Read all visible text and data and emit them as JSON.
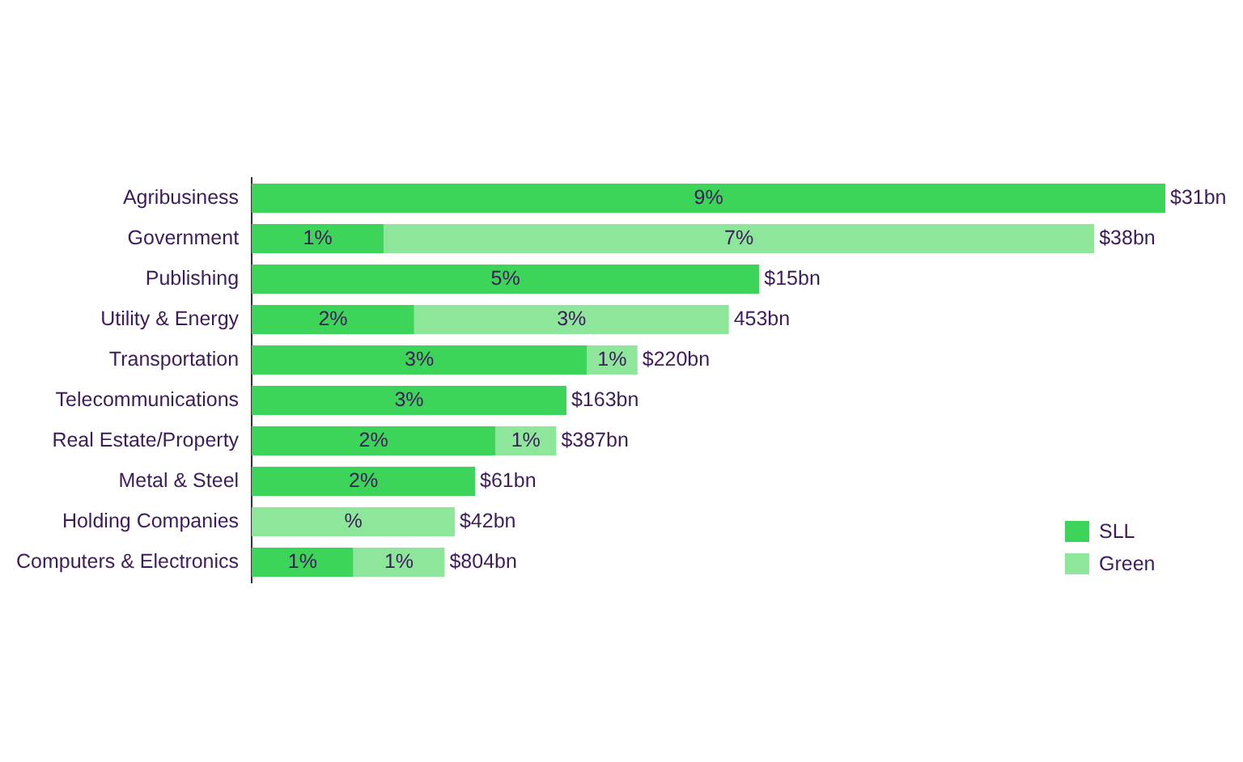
{
  "chart_data": {
    "type": "bar",
    "orientation": "horizontal",
    "stacked": true,
    "legend": "bottom right",
    "tick_labels": "y",
    "xlim": [
      0,
      9
    ],
    "categories": [
      "Agribusiness",
      "Government",
      "Publishing",
      "Utility & Energy",
      "Transportation",
      "Telecommunications",
      "Real Estate/Property",
      "Metal & Steel",
      "Holding Companies",
      "Computers & Electronics"
    ],
    "series": [
      {
        "name": "SLL",
        "color": "#3dd45a",
        "values": [
          9,
          1.3,
          5,
          1.6,
          3.3,
          3.1,
          2.4,
          2.2,
          null,
          1
        ],
        "value_labels": [
          "9%",
          "1%",
          "5%",
          "2%",
          "3%",
          "3%",
          "2%",
          "2%",
          null,
          "1%"
        ]
      },
      {
        "name": "Green",
        "color": "#8ee69a",
        "values": [
          null,
          7,
          null,
          3.1,
          0.5,
          null,
          0.6,
          null,
          2,
          0.9
        ],
        "value_labels": [
          null,
          "7%",
          null,
          "3%",
          "1%",
          null,
          "1%",
          null,
          "%",
          "1%"
        ]
      }
    ],
    "annotations": [
      {
        "text": "$31bn",
        "x": 9,
        "y": "Agribusiness"
      },
      {
        "text": "$38bn",
        "x": 8.3,
        "y": "Government"
      },
      {
        "text": "$15bn",
        "x": 5,
        "y": "Publishing"
      },
      {
        "text": "453bn",
        "x": 4.7,
        "y": "Utility & Energy"
      },
      {
        "text": "$220bn",
        "x": 3.8,
        "y": "Transportation"
      },
      {
        "text": "$163bn",
        "x": 3.1,
        "y": "Telecommunications"
      },
      {
        "text": "$387bn",
        "x": 3,
        "y": "Real Estate/Property"
      },
      {
        "text": "$61bn",
        "x": 2.2,
        "y": "Metal & Steel"
      },
      {
        "text": "$42bn",
        "x": 2,
        "y": "Holding Companies"
      },
      {
        "text": "$804bn",
        "x": 1.9,
        "y": "Computers & Electronics"
      }
    ]
  }
}
